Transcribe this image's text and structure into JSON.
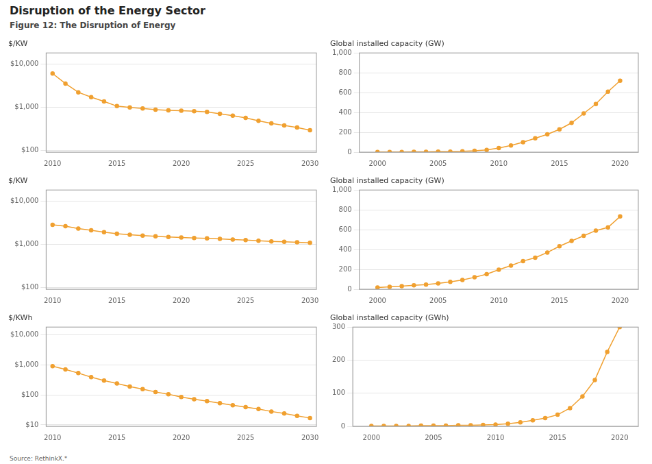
{
  "title": "Disruption of the Energy Sector",
  "subtitle": "Figure 12: The Disruption of Energy",
  "source": "Source: RethinkX.*",
  "chart_data": [
    {
      "type": "line",
      "y_label": "$/KW",
      "color": "#f0a030",
      "marker": "circle",
      "log": "y",
      "grid": true,
      "x": [
        2010,
        2011,
        2012,
        2013,
        2014,
        2015,
        2016,
        2017,
        2018,
        2019,
        2020,
        2021,
        2022,
        2023,
        2024,
        2025,
        2026,
        2027,
        2028,
        2029,
        2030
      ],
      "values": [
        6000,
        3500,
        2200,
        1700,
        1350,
        1050,
        980,
        930,
        870,
        840,
        820,
        800,
        770,
        700,
        630,
        560,
        480,
        420,
        375,
        335,
        290
      ],
      "xlim": [
        2009.5,
        2030.5
      ],
      "xticks": [
        2010,
        2015,
        2020,
        2025,
        2030
      ],
      "ylim": [
        90,
        18000
      ],
      "yticks": [
        {
          "value": 100,
          "label": "$100"
        },
        {
          "value": 1000,
          "label": "$1,000"
        },
        {
          "value": 10000,
          "label": "$10,000"
        }
      ]
    },
    {
      "type": "line",
      "y_label": "Global installed capacity (GW)",
      "color": "#f0a030",
      "marker": "circle",
      "grid": true,
      "x": [
        2000,
        2001,
        2002,
        2003,
        2004,
        2005,
        2006,
        2007,
        2008,
        2009,
        2010,
        2011,
        2012,
        2013,
        2014,
        2015,
        2016,
        2017,
        2018,
        2019,
        2020
      ],
      "values": [
        1,
        2,
        2,
        3,
        4,
        5,
        6,
        8,
        14,
        23,
        42,
        68,
        100,
        140,
        180,
        230,
        295,
        390,
        485,
        610,
        720
      ],
      "xlim": [
        1998.5,
        2021.5
      ],
      "xticks": [
        2000,
        2005,
        2010,
        2015,
        2020
      ],
      "ylim": [
        0,
        1000
      ],
      "yticks": [
        0,
        200,
        400,
        600,
        800,
        {
          "value": 1000,
          "label": "1,000"
        }
      ]
    },
    {
      "type": "line",
      "y_label": "$/KW",
      "color": "#f0a030",
      "marker": "circle",
      "log": "y",
      "grid": true,
      "x": [
        2010,
        2011,
        2012,
        2013,
        2014,
        2015,
        2016,
        2017,
        2018,
        2019,
        2020,
        2021,
        2022,
        2023,
        2024,
        2025,
        2026,
        2027,
        2028,
        2029,
        2030
      ],
      "values": [
        2800,
        2600,
        2300,
        2100,
        1900,
        1750,
        1650,
        1580,
        1520,
        1470,
        1420,
        1390,
        1360,
        1320,
        1280,
        1240,
        1200,
        1160,
        1130,
        1100,
        1070
      ],
      "xlim": [
        2009.5,
        2030.5
      ],
      "xticks": [
        2010,
        2015,
        2020,
        2025,
        2030
      ],
      "ylim": [
        90,
        18000
      ],
      "yticks": [
        {
          "value": 100,
          "label": "$100"
        },
        {
          "value": 1000,
          "label": "$1,000"
        },
        {
          "value": 10000,
          "label": "$10,000"
        }
      ]
    },
    {
      "type": "line",
      "y_label": "Global installed capacity (GW)",
      "color": "#f0a030",
      "marker": "circle",
      "grid": true,
      "x": [
        2000,
        2001,
        2002,
        2003,
        2004,
        2005,
        2006,
        2007,
        2008,
        2009,
        2010,
        2011,
        2012,
        2013,
        2014,
        2015,
        2016,
        2017,
        2018,
        2019,
        2020
      ],
      "values": [
        17,
        24,
        31,
        39,
        47,
        59,
        74,
        94,
        120,
        152,
        197,
        238,
        284,
        318,
        370,
        433,
        487,
        539,
        591,
        623,
        733
      ],
      "xlim": [
        1998.5,
        2021.5
      ],
      "xticks": [
        2000,
        2005,
        2010,
        2015,
        2020
      ],
      "ylim": [
        0,
        1000
      ],
      "yticks": [
        0,
        200,
        400,
        600,
        800,
        {
          "value": 1000,
          "label": "1,000"
        }
      ]
    },
    {
      "type": "line",
      "y_label": "$/KWh",
      "color": "#f0a030",
      "marker": "circle",
      "log": "y",
      "grid": true,
      "x": [
        2010,
        2011,
        2012,
        2013,
        2014,
        2015,
        2016,
        2017,
        2018,
        2019,
        2020,
        2021,
        2022,
        2023,
        2024,
        2025,
        2026,
        2027,
        2028,
        2029,
        2030
      ],
      "values": [
        900,
        700,
        530,
        390,
        300,
        240,
        190,
        155,
        125,
        105,
        85,
        72,
        62,
        53,
        45,
        39,
        34,
        28,
        24,
        20,
        17
      ],
      "xlim": [
        2009.5,
        2030.5
      ],
      "xticks": [
        2010,
        2015,
        2020,
        2025,
        2030
      ],
      "ylim": [
        9,
        18000
      ],
      "yticks": [
        {
          "value": 10,
          "label": "$10"
        },
        {
          "value": 100,
          "label": "$100"
        },
        {
          "value": 1000,
          "label": "$1,000"
        },
        {
          "value": 10000,
          "label": "$10,000"
        }
      ]
    },
    {
      "type": "line",
      "y_label": "Global installed capacity (GWh)",
      "color": "#f0a030",
      "marker": "circle",
      "grid": true,
      "x": [
        2000,
        2001,
        2002,
        2003,
        2004,
        2005,
        2006,
        2007,
        2008,
        2009,
        2010,
        2011,
        2012,
        2013,
        2014,
        2015,
        2016,
        2017,
        2018,
        2019,
        2020
      ],
      "values": [
        1,
        1,
        1,
        1,
        2,
        2,
        2,
        3,
        3,
        4,
        5,
        8,
        12,
        18,
        25,
        35,
        55,
        90,
        140,
        225,
        300
      ],
      "xlim": [
        1998.5,
        2021.5
      ],
      "xticks": [
        2000,
        2005,
        2010,
        2015,
        2020
      ],
      "ylim": [
        0,
        300
      ],
      "yticks": [
        0,
        100,
        200,
        300
      ]
    }
  ]
}
